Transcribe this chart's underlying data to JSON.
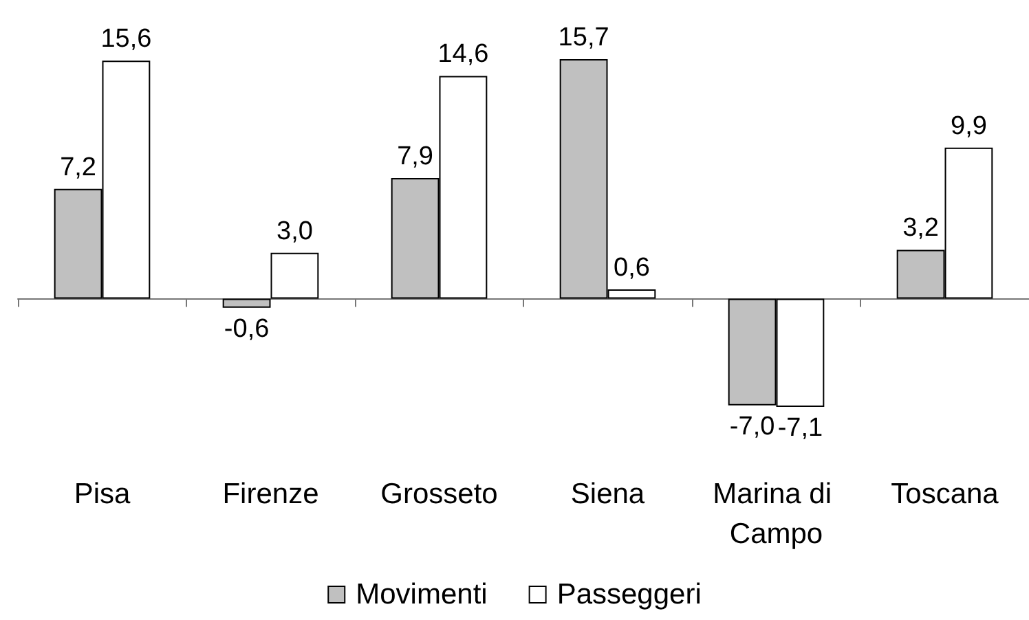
{
  "chart_data": {
    "type": "bar",
    "categories": [
      "Pisa",
      "Firenze",
      "Grosseto",
      "Siena",
      "Marina di Campo",
      "Toscana"
    ],
    "series": [
      {
        "name": "Movimenti",
        "color": "#c0c0c0",
        "values": [
          7.2,
          -0.6,
          7.9,
          15.7,
          -7.0,
          3.2
        ],
        "value_labels": [
          "7,2",
          "-0,6",
          "7,9",
          "15,7",
          "-7,0",
          "3,2"
        ]
      },
      {
        "name": "Passeggeri",
        "color": "#ffffff",
        "values": [
          15.6,
          3.0,
          14.6,
          0.6,
          -7.1,
          9.9
        ],
        "value_labels": [
          "15,6",
          "3,0",
          "14,6",
          "0,6",
          "-7,1",
          "9,9"
        ]
      }
    ],
    "legend": "bottom",
    "tick_labels": "x"
  }
}
